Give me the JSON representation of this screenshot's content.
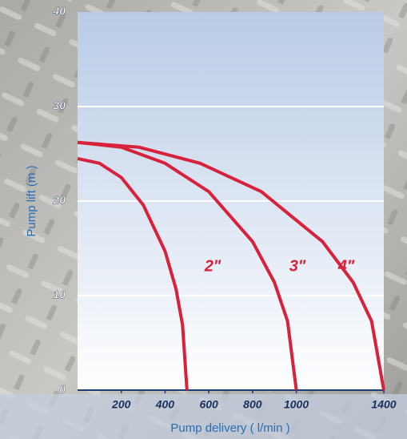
{
  "chart_data": {
    "type": "line",
    "x_label": "Pump delivery ( l/min )",
    "y_label": "Pump lift (m )",
    "xlim": [
      0,
      1400
    ],
    "ylim": [
      0,
      40
    ],
    "xticks": [
      200,
      400,
      600,
      800,
      1000,
      1400
    ],
    "yticks": [
      0,
      10,
      20,
      30,
      40
    ],
    "grid": true,
    "series": [
      {
        "name": "2\"",
        "color": "#d8213a",
        "x": [
          0,
          100,
          200,
          300,
          400,
          450,
          480,
          500
        ],
        "y": [
          24.5,
          24.0,
          22.5,
          19.6,
          14.7,
          10.7,
          6.9,
          0
        ]
      },
      {
        "name": "3\"",
        "color": "#d8213a",
        "x": [
          0,
          200,
          400,
          600,
          800,
          900,
          960,
          1000
        ],
        "y": [
          26.2,
          25.7,
          24.0,
          21.0,
          15.7,
          11.4,
          7.3,
          0
        ]
      },
      {
        "name": "4\"",
        "color": "#d8213a",
        "x": [
          0,
          280,
          560,
          840,
          1120,
          1260,
          1344,
          1400
        ],
        "y": [
          26.2,
          25.7,
          24.0,
          21.0,
          15.7,
          11.4,
          7.3,
          0
        ]
      }
    ]
  }
}
